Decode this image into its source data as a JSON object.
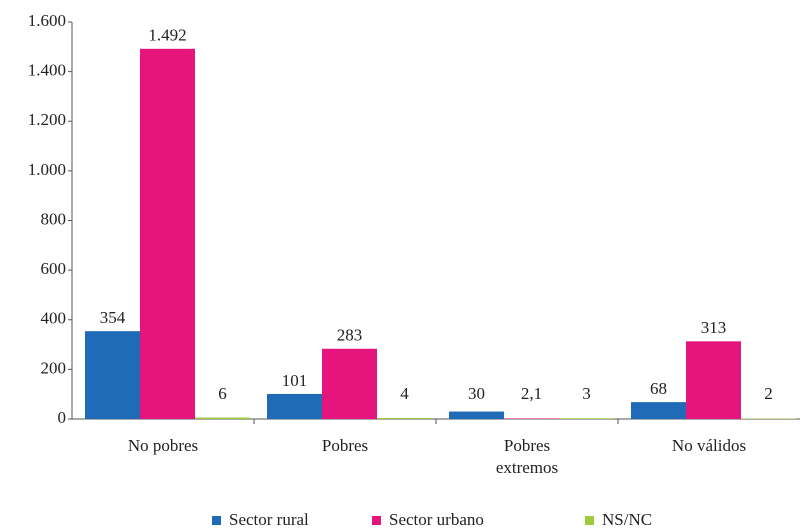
{
  "chart_data": {
    "type": "bar",
    "categories": [
      "No pobres",
      "Pobres",
      "Pobres\nextremos",
      "No válidos"
    ],
    "series": [
      {
        "name": "Sector rural",
        "color": "#1f6bb8",
        "values": [
          354,
          101,
          30,
          68
        ]
      },
      {
        "name": "Sector urbano",
        "color": "#e6157e",
        "values": [
          1492,
          283,
          2.1,
          313
        ],
        "value_labels": [
          "1.492",
          "283",
          "2,1",
          "313"
        ]
      },
      {
        "name": "NS/NC",
        "color": "#9ccc3c",
        "values": [
          6,
          4,
          3,
          2
        ]
      }
    ],
    "ylim": [
      0,
      1600
    ],
    "yticks": [
      0,
      200,
      400,
      600,
      800,
      {
        "value": 1000,
        "label": "1.000"
      },
      {
        "value": 1200,
        "label": "1.200"
      },
      {
        "value": 1400,
        "label": "1.400"
      },
      {
        "value": 1600,
        "label": "1.600"
      }
    ],
    "grid": false,
    "legend": "bottom"
  }
}
